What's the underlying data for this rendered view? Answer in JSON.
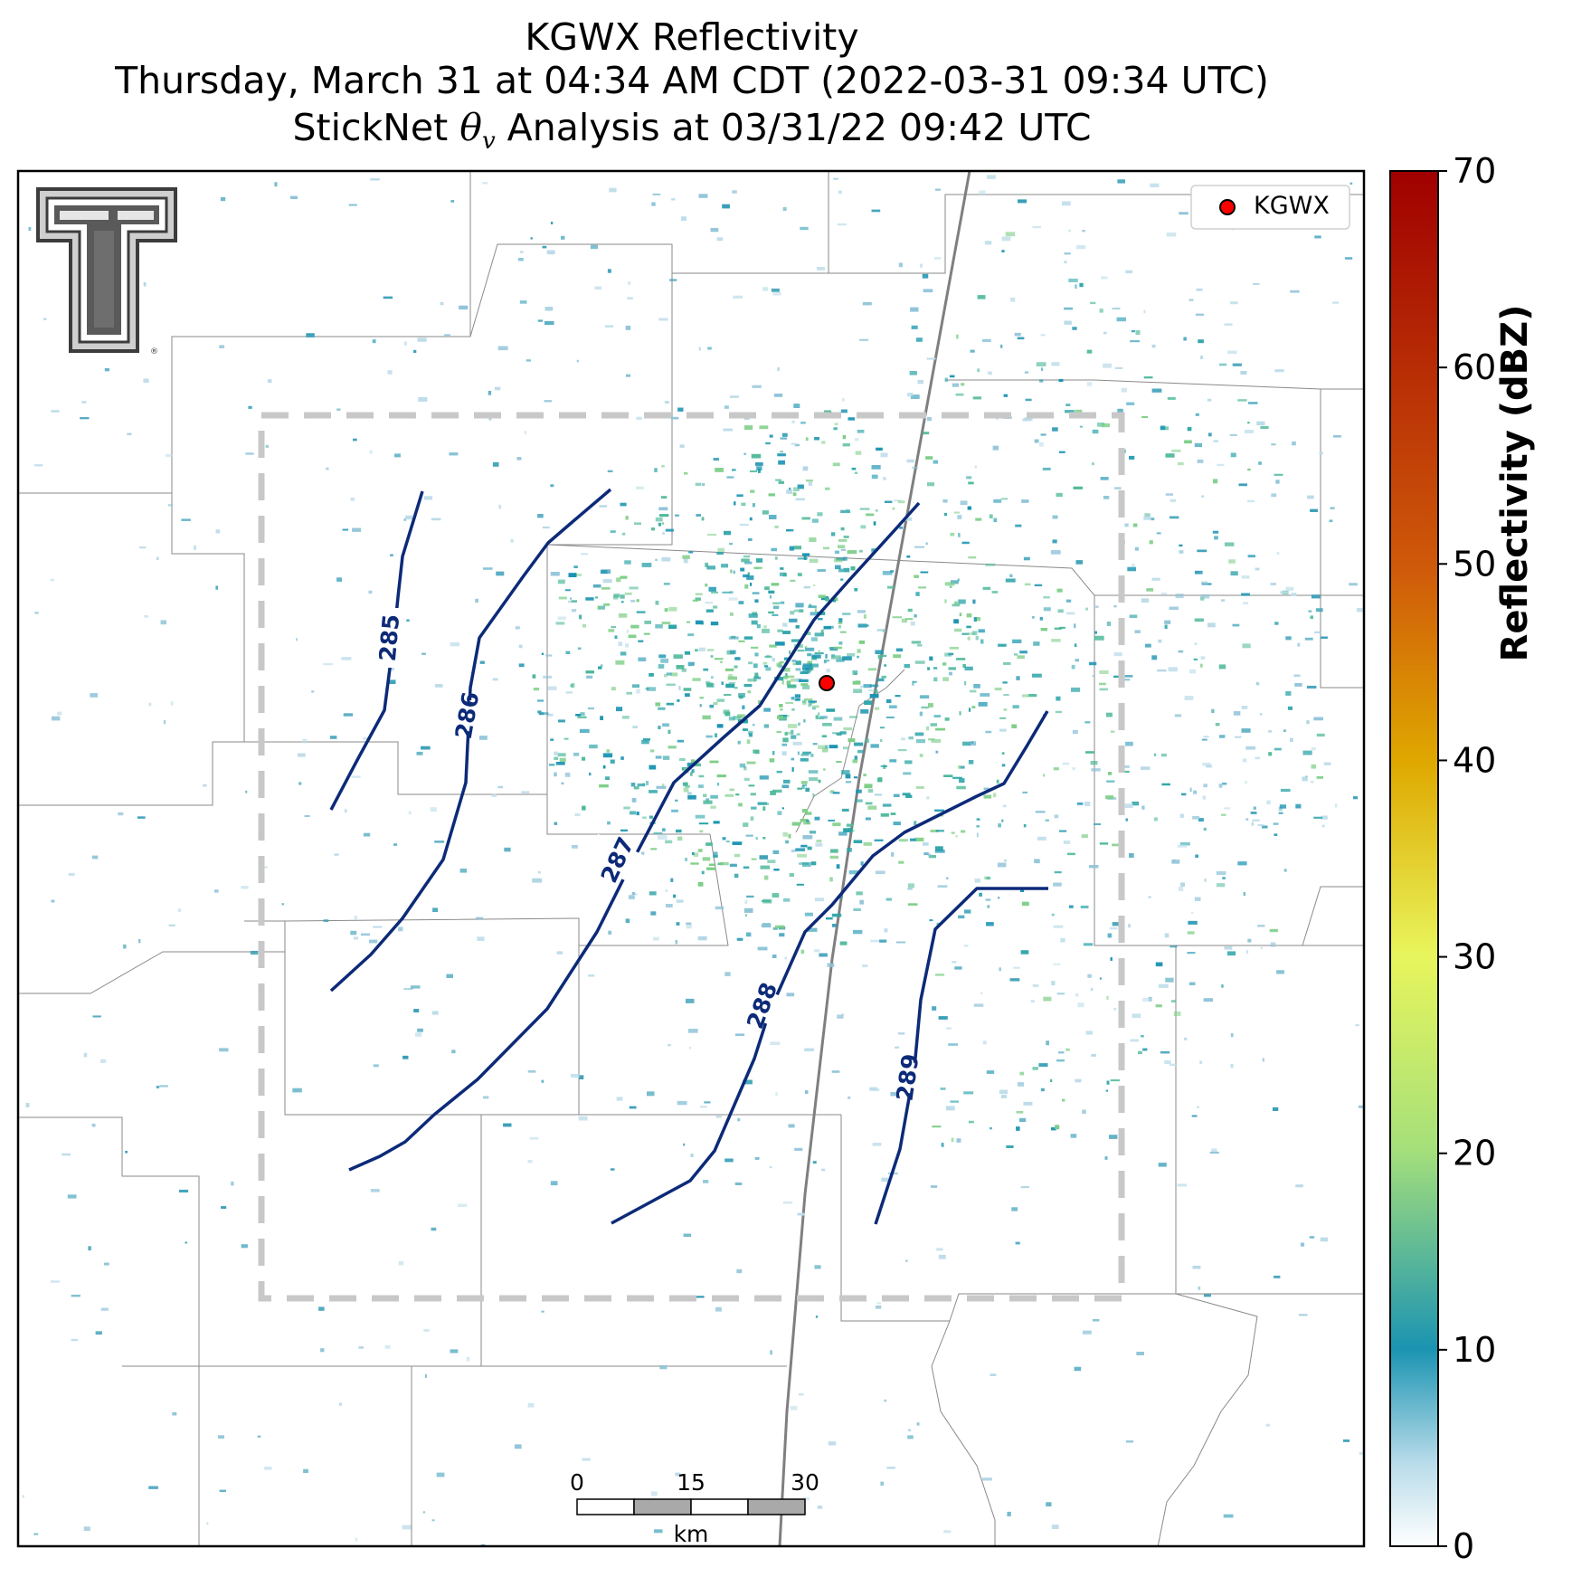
{
  "header": {
    "title": "KGWX Reflectivity",
    "subtitle_time": "Thursday, March 31 at 04:34 AM CDT (2022-03-31 09:34 UTC)",
    "subtitle_analysis_prefix": "StickNet ",
    "subtitle_analysis_var": "θ",
    "subtitle_analysis_sub": "v",
    "subtitle_analysis_suffix": " Analysis at 03/31/22 09:42 UTC"
  },
  "legend": {
    "station_label": "KGWX",
    "station_marker_color": "#ff0000"
  },
  "logo": {
    "name": "texas-tech-double-t-logo",
    "mark": "®"
  },
  "contours": {
    "color": "#0c2a78",
    "labels": [
      "285",
      "286",
      "287",
      "288",
      "289"
    ]
  },
  "scale_bar": {
    "ticks": [
      "0",
      "15",
      "30"
    ],
    "unit": "km"
  },
  "colorbar": {
    "label": "Reflectivity (dBZ)",
    "ticks": [
      "0",
      "10",
      "20",
      "30",
      "40",
      "50",
      "60",
      "70"
    ],
    "min": 0,
    "max": 70,
    "colors": [
      "#ffffff",
      "#1b94b2",
      "#a6e07a",
      "#e8f55c",
      "#dfa800",
      "#cf5a0a",
      "#a00000"
    ]
  },
  "analysis_box": {
    "style": "dashed",
    "color": "#c8c8c8"
  }
}
